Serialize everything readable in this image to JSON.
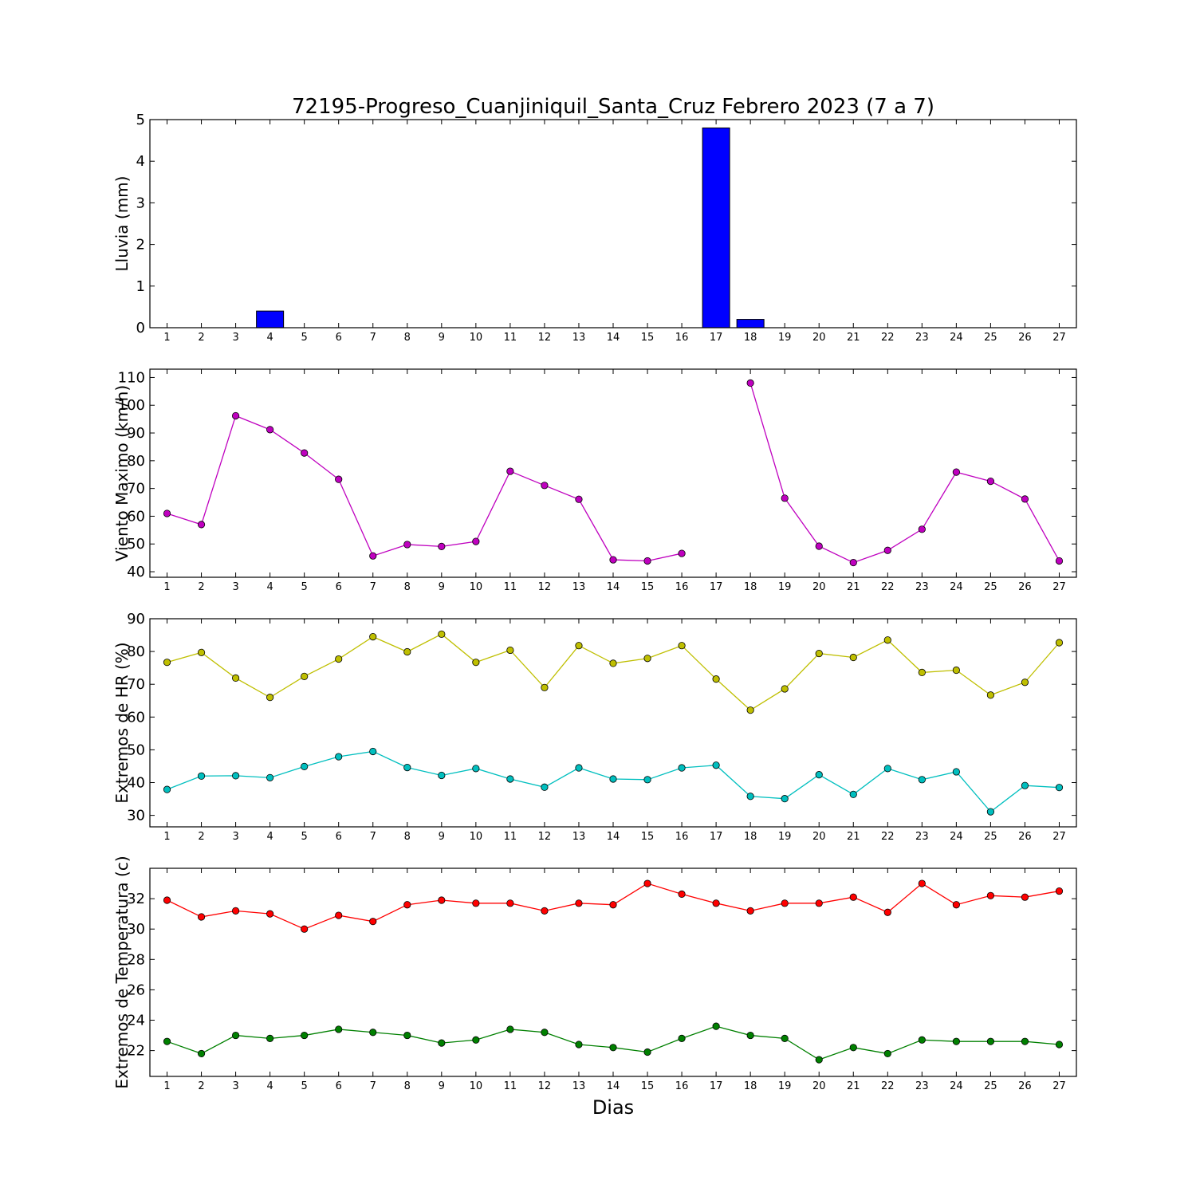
{
  "chart_data": [
    {
      "type": "bar",
      "title": "72195-Progreso_Cuanjiniquil_Santa_Cruz Febrero 2023  (7 a 7)",
      "ylabel": "Lluvia (mm)",
      "xlabel": "",
      "categories": [
        1,
        2,
        3,
        4,
        5,
        6,
        7,
        8,
        9,
        10,
        11,
        12,
        13,
        14,
        15,
        16,
        17,
        18,
        19,
        20,
        21,
        22,
        23,
        24,
        25,
        26,
        27
      ],
      "ylim": [
        0,
        5
      ],
      "yticks": [
        0,
        1,
        2,
        3,
        4,
        5
      ],
      "colors": {
        "bar": "#0000ff"
      },
      "series": [
        {
          "values": [
            0,
            0,
            0,
            0.4,
            0,
            0,
            0,
            0,
            0,
            0,
            0,
            0,
            0,
            0,
            0,
            0,
            4.8,
            0.2,
            0,
            0,
            0,
            0,
            0,
            0,
            0,
            0,
            0
          ]
        }
      ]
    },
    {
      "type": "line",
      "title": "",
      "ylabel": "Viento Maximo (km/h)",
      "xlabel": "",
      "x": [
        1,
        2,
        3,
        4,
        5,
        6,
        7,
        8,
        9,
        10,
        11,
        12,
        13,
        14,
        15,
        16,
        17,
        18,
        19,
        20,
        21,
        22,
        23,
        24,
        25,
        26,
        27
      ],
      "ylim": [
        38,
        113
      ],
      "yticks": [
        40,
        50,
        60,
        70,
        80,
        90,
        100,
        110
      ],
      "colors": {
        "line": "#bf00bf"
      },
      "series": [
        {
          "values": [
            61,
            57,
            96.2,
            91.2,
            82.8,
            73.3,
            45.7,
            49.8,
            49.1,
            50.9,
            76.2,
            71.1,
            66.1,
            44.3,
            43.9,
            46.6,
            null,
            108,
            66.5,
            49.2,
            43.3,
            47.7,
            55.3,
            75.9,
            72.6,
            66.2,
            43.9
          ]
        }
      ]
    },
    {
      "type": "line",
      "title": "",
      "ylabel": "Extremos de HR (%)",
      "xlabel": "",
      "x": [
        1,
        2,
        3,
        4,
        5,
        6,
        7,
        8,
        9,
        10,
        11,
        12,
        13,
        14,
        15,
        16,
        17,
        18,
        19,
        20,
        21,
        22,
        23,
        24,
        25,
        26,
        27
      ],
      "ylim": [
        26.5,
        90
      ],
      "yticks": [
        30,
        40,
        50,
        60,
        70,
        80,
        90
      ],
      "colors": {
        "max": "#bfbf00",
        "min": "#00bfbf"
      },
      "series": [
        {
          "values": [
            76.7,
            79.7,
            71.9,
            66,
            72.4,
            77.7,
            84.5,
            79.9,
            85.3,
            76.7,
            80.4,
            69,
            81.8,
            76.4,
            77.9,
            81.8,
            71.6,
            62.1,
            68.6,
            79.4,
            78.2,
            83.5,
            73.6,
            74.3,
            66.7,
            70.6,
            82.7
          ]
        },
        {
          "values": [
            37.9,
            42,
            42.1,
            41.5,
            44.9,
            47.9,
            49.5,
            44.6,
            42.2,
            44.3,
            41.1,
            38.6,
            44.5,
            41.1,
            40.9,
            44.5,
            45.3,
            35.8,
            35.1,
            42.4,
            36.4,
            44.3,
            40.9,
            43.3,
            31.1,
            39.1,
            38.5
          ]
        }
      ]
    },
    {
      "type": "line",
      "title": "",
      "ylabel": "Extremos de Temperatura (c)",
      "xlabel": "Dias",
      "x": [
        1,
        2,
        3,
        4,
        5,
        6,
        7,
        8,
        9,
        10,
        11,
        12,
        13,
        14,
        15,
        16,
        17,
        18,
        19,
        20,
        21,
        22,
        23,
        24,
        25,
        26,
        27
      ],
      "ylim": [
        20.3,
        34
      ],
      "yticks": [
        22,
        24,
        26,
        28,
        30,
        32
      ],
      "colors": {
        "max": "#ff0000",
        "min": "#008000"
      },
      "series": [
        {
          "values": [
            31.9,
            30.8,
            31.2,
            31,
            30,
            30.9,
            30.5,
            31.6,
            31.9,
            31.7,
            31.7,
            31.2,
            31.7,
            31.6,
            33,
            32.3,
            31.7,
            31.2,
            31.7,
            31.7,
            32.1,
            31.1,
            33,
            31.6,
            32.2,
            32.1,
            32.5
          ]
        },
        {
          "values": [
            22.6,
            21.8,
            23,
            22.8,
            23,
            23.4,
            23.2,
            23,
            22.5,
            22.7,
            23.4,
            23.2,
            22.4,
            22.2,
            21.9,
            22.8,
            23.6,
            23,
            22.8,
            21.4,
            22.2,
            21.8,
            22.7,
            22.6,
            22.6,
            22.6,
            22.4
          ]
        }
      ]
    }
  ]
}
